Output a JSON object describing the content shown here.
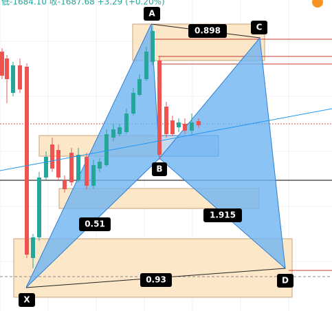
{
  "header": {
    "quote": "低-1684.10 收-1687.68 +3.29 (+0.20%)"
  },
  "points": {
    "x": "X",
    "a": "A",
    "b": "B",
    "c": "C",
    "d": "D"
  },
  "ratios": {
    "ac": "0.898",
    "xb": "0.51",
    "bd": "1.915",
    "xd": "0.93"
  }
}
